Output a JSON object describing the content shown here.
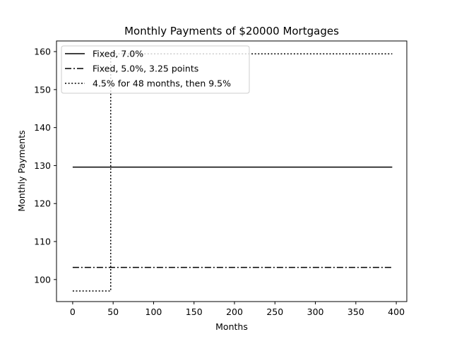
{
  "chart_data": {
    "type": "line",
    "title": "Monthly Payments of $20000 Mortgages",
    "xlabel": "Months",
    "ylabel": "Monthly Payments",
    "xlim": [
      -20,
      413
    ],
    "ylim": [
      94.2,
      162.8
    ],
    "xticks": [
      0,
      50,
      100,
      150,
      200,
      250,
      300,
      350,
      400
    ],
    "yticks": [
      100,
      110,
      120,
      130,
      140,
      150,
      160
    ],
    "grid": false,
    "legend_position": "upper-left",
    "series": [
      {
        "name": "Fixed, 7.0%",
        "style": "solid",
        "color": "#000000",
        "x": [
          0,
          395
        ],
        "y": [
          129.6,
          129.6
        ]
      },
      {
        "name": "Fixed, 5.0%, 3.25 points",
        "style": "dashdot",
        "color": "#000000",
        "x": [
          0,
          395
        ],
        "y": [
          103.2,
          103.2
        ]
      },
      {
        "name": "4.5% for 48 months, then 9.5%",
        "style": "dotted",
        "color": "#000000",
        "x": [
          0,
          47,
          47,
          395
        ],
        "y": [
          97.0,
          97.0,
          159.4,
          159.4
        ]
      }
    ]
  }
}
